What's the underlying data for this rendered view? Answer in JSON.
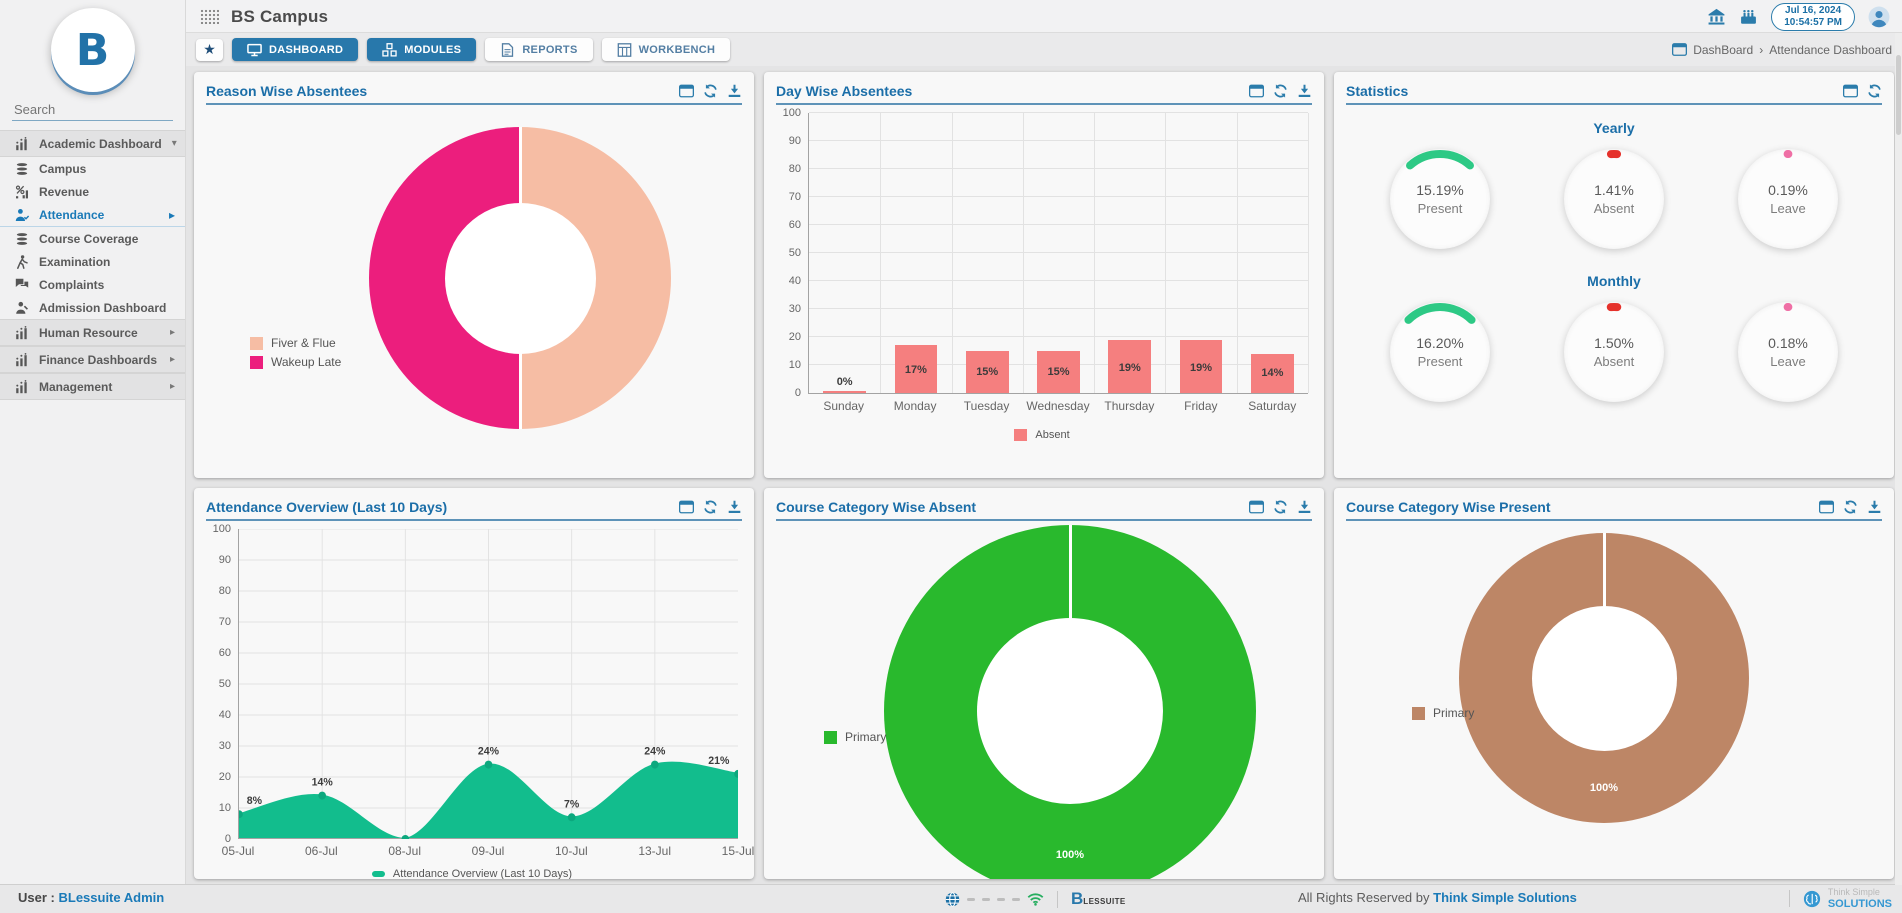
{
  "app": {
    "title": "BS Campus",
    "datetime": {
      "date": "Jul 16, 2024",
      "time": "10:54:57 PM"
    }
  },
  "tabs": {
    "items": [
      {
        "label": "DASHBOARD",
        "active": true
      },
      {
        "label": "MODULES",
        "active": true
      },
      {
        "label": "REPORTS",
        "active": false
      },
      {
        "label": "WORKBENCH",
        "active": false
      }
    ]
  },
  "breadcrumb": {
    "root": "DashBoard",
    "separator": "›",
    "current": "Attendance Dashboard"
  },
  "sidebar": {
    "search_placeholder": "Search",
    "items": [
      {
        "label": "Academic Dashboard"
      },
      {
        "label": "Campus"
      },
      {
        "label": "Revenue"
      },
      {
        "label": "Attendance"
      },
      {
        "label": "Course Coverage"
      },
      {
        "label": "Examination"
      },
      {
        "label": "Complaints"
      },
      {
        "label": "Admission Dashboard"
      },
      {
        "label": "Human Resource"
      },
      {
        "label": "Finance Dashboards"
      },
      {
        "label": "Management"
      }
    ]
  },
  "panels": {
    "reason": {
      "title": "Reason Wise Absentees"
    },
    "day": {
      "title": "Day Wise Absentees"
    },
    "stats": {
      "title": "Statistics",
      "yearly": {
        "label": "Yearly",
        "gauges": [
          {
            "value": "15.19%",
            "caption": "Present",
            "pct": 15.19,
            "color": "#2dc985"
          },
          {
            "value": "1.41%",
            "caption": "Absent",
            "pct": 1.41,
            "color": "#e5312b"
          },
          {
            "value": "0.19%",
            "caption": "Leave",
            "pct": 0.19,
            "color": "#ef6fa5"
          }
        ]
      },
      "monthly": {
        "label": "Monthly",
        "gauges": [
          {
            "value": "16.20%",
            "caption": "Present",
            "pct": 16.2,
            "color": "#2dc985"
          },
          {
            "value": "1.50%",
            "caption": "Absent",
            "pct": 1.5,
            "color": "#e5312b"
          },
          {
            "value": "0.18%",
            "caption": "Leave",
            "pct": 0.18,
            "color": "#ef6fa5"
          }
        ]
      }
    },
    "overview": {
      "title": "Attendance Overview (Last 10 Days)",
      "legend": "Attendance Overview (Last 10 Days)"
    },
    "absent": {
      "title": "Course Category Wise Absent",
      "label": "100%"
    },
    "present": {
      "title": "Course Category Wise Present",
      "label": "100%"
    }
  },
  "footer": {
    "user_label": "User :",
    "user_name": "BLessuite Admin",
    "blessuite_b": "B",
    "blessuite_rest": "LESSUITE",
    "rights_text": "All Rights Reserved by",
    "company": "Think Simple Solutions",
    "brand_small": "Think Simple",
    "brand_big": "SOLUTIONS"
  },
  "chart_data": [
    {
      "name": "reason_wise_absentees",
      "type": "pie",
      "donut": true,
      "title": "Reason Wise Absentees",
      "labels": [
        "Fiver & Flue",
        "Wakeup Late"
      ],
      "values": [
        50,
        50
      ],
      "colors": [
        "#f6bda4",
        "#ec1e7d"
      ],
      "legend_position": "left"
    },
    {
      "name": "day_wise_absentees",
      "type": "bar",
      "title": "Day Wise Absentees",
      "categories": [
        "Sunday",
        "Monday",
        "Tuesday",
        "Wednesday",
        "Thursday",
        "Friday",
        "Saturday"
      ],
      "values": [
        0,
        17,
        15,
        15,
        19,
        19,
        14
      ],
      "data_labels": [
        "0%",
        "17%",
        "15%",
        "15%",
        "19%",
        "19%",
        "14%"
      ],
      "series_name": "Absent",
      "color": "#f57f7f",
      "ylim": [
        0,
        100
      ],
      "ytick_step": 10,
      "grid": true,
      "legend_position": "bottom"
    },
    {
      "name": "attendance_overview_last_10_days",
      "type": "area",
      "title": "Attendance Overview (Last 10 Days)",
      "x": [
        "05-Jul",
        "06-Jul",
        "08-Jul",
        "09-Jul",
        "10-Jul",
        "13-Jul",
        "15-Jul"
      ],
      "values": [
        8,
        14,
        0,
        24,
        7,
        24,
        21
      ],
      "data_labels": [
        "8%",
        "14%",
        "",
        "24%",
        "7%",
        "24%",
        "21%"
      ],
      "color": "#12bd8d",
      "ylim": [
        0,
        100
      ],
      "ytick_step": 10,
      "grid": true,
      "legend_position": "bottom"
    },
    {
      "name": "course_category_wise_absent",
      "type": "pie",
      "donut": true,
      "title": "Course Category Wise Absent",
      "labels": [
        "Primary"
      ],
      "values": [
        100
      ],
      "colors": [
        "#29b92d"
      ],
      "data_labels": [
        "100%"
      ],
      "legend_position": "left"
    },
    {
      "name": "course_category_wise_present",
      "type": "pie",
      "donut": true,
      "title": "Course Category Wise Present",
      "labels": [
        "Primary"
      ],
      "values": [
        100
      ],
      "colors": [
        "#bd8666"
      ],
      "data_labels": [
        "100%"
      ],
      "legend_position": "left"
    },
    {
      "name": "statistics_gauges",
      "type": "table",
      "sections": [
        {
          "label": "Yearly",
          "rows": [
            [
              "Present",
              "15.19%"
            ],
            [
              "Absent",
              "1.41%"
            ],
            [
              "Leave",
              "0.19%"
            ]
          ]
        },
        {
          "label": "Monthly",
          "rows": [
            [
              "Present",
              "16.20%"
            ],
            [
              "Absent",
              "1.50%"
            ],
            [
              "Leave",
              "0.18%"
            ]
          ]
        }
      ]
    }
  ]
}
